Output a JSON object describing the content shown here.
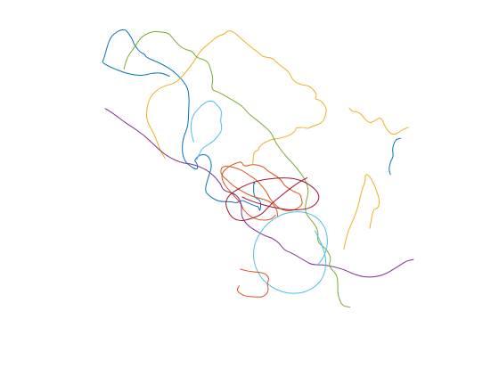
{
  "chart_data": {
    "type": "line",
    "title": "",
    "xlabel": "",
    "ylabel": "",
    "axes_visible": false,
    "grid": false,
    "legend": "none",
    "xlim": [
      0,
      100
    ],
    "ylim": [
      0,
      100
    ],
    "colors": [
      "#0072BD",
      "#D95319",
      "#EDB120",
      "#7E2F8E",
      "#77AC30",
      "#4DBEEE",
      "#A2142F"
    ],
    "series": [
      {
        "color": "#0072BD",
        "x": [
          49.1,
          48.9,
          48.7,
          48.9,
          51.2,
          50.8,
          50.3,
          49.5,
          45.5,
          45.1,
          43.1,
          41.8,
          37.3,
          33.9,
          33.1,
          34.2,
          35.5,
          34.2,
          31.5,
          29.6,
          30.6,
          30.9,
          27.5,
          26.3,
          25.8,
          26.1,
          27.7,
          27.9,
          28.1,
          27.5,
          23.4,
          18.6,
          14.3,
          13.8,
          12.3,
          10.3,
          10.1,
          8.7,
          7.2,
          4.0,
          2.3,
          0.7,
          0.0,
          10.9,
          18.2,
          21.8
        ],
        "y": [
          50.6,
          51.2,
          49.4,
          46.1,
          45.2,
          41.4,
          43.3,
          43.3,
          45.0,
          45.3,
          44.3,
          44.8,
          44.8,
          47.1,
          48.7,
          52.5,
          56.4,
          59.7,
          59.9,
          57.8,
          57.2,
          54.7,
          56.7,
          58.6,
          61.1,
          65.0,
          68.8,
          72.9,
          78.1,
          81.7,
          86.3,
          89.1,
          90.7,
          91.9,
          92.4,
          95.1,
          96.1,
          98.5,
          100.0,
          98.5,
          96.1,
          90.2,
          88.8,
          84.5,
          86.2,
          84.8
        ]
      },
      {
        "color": "#D95319",
        "x": [
          55.8,
          54.4,
          51.3,
          48.3,
          45.5,
          44.7,
          41.8,
          39.1,
          38.3,
          40.6,
          43.2,
          44.8,
          45.8,
          48.4,
          51.6,
          52.7,
          53.7,
          55.9,
          57.7,
          58.6,
          61.5,
          63.7,
          64.1,
          64.5,
          62.6,
          59.8,
          57.0,
          55.3,
          53.8,
          53.0,
          51.2,
          49.6,
          47.3,
          45.1,
          42.3,
          39.9,
          38.3,
          38.2,
          40.3,
          42.1,
          44.8,
          46.8,
          49.0,
          51.5,
          53.8,
          55.4,
          56.3,
          56.5
        ],
        "y": [
          40.5,
          39.1,
          38.8,
          39.7,
          42.0,
          44.3,
          47.4,
          50.5,
          53.6,
          56.0,
          57.1,
          57.6,
          55.9,
          56.8,
          56.1,
          55.2,
          54.3,
          53.1,
          51.6,
          49.9,
          48.0,
          47.3,
          45.7,
          44.0,
          42.4,
          41.7,
          42.6,
          44.2,
          46.0,
          47.8,
          50.0,
          51.8,
          53.2,
          54.8,
          55.8,
          56.2,
          55.7,
          53.4,
          51.7,
          49.9,
          48.3,
          47.1,
          46.3,
          45.7,
          44.9,
          43.6,
          41.9,
          39.9
        ]
      },
      {
        "color": "#EDB120",
        "x": [
          48.5,
          48.7,
          50.3,
          50.5,
          52.9,
          55.7,
          56.6,
          60.4,
          62.4,
          62.2,
          65.3,
          65.9,
          67.7,
          70.7,
          72.0,
          72.0,
          69.9,
          68.4,
          69.1,
          66.8,
          64.1,
          61.3,
          60.1,
          56.6,
          54.9,
          51.6,
          50.8,
          48.6,
          46.2,
          43.8,
          41.9,
          40.4,
          39.2,
          37.4,
          34.6,
          31.5,
          29.7,
          27.3,
          24.4,
          22.2,
          19.0,
          16.1,
          14.9,
          14.4,
          14.5,
          16.2,
          17.6,
          18.7,
          20.3
        ],
        "y": [
          56.9,
          60.7,
          61.1,
          62.4,
          64.1,
          64.9,
          64.9,
          65.9,
          67.6,
          68.4,
          68.5,
          68.0,
          68.9,
          69.8,
          72.5,
          75.2,
          77.3,
          77.5,
          79.0,
          81.8,
          82.0,
          83.4,
          86.3,
          88.7,
          90.6,
          91.0,
          92.0,
          93.5,
          95.5,
          97.7,
          99.2,
          99.3,
          98.1,
          97.7,
          95.4,
          92.7,
          89.6,
          86.4,
          83.2,
          82.2,
          81.3,
          78.9,
          76.4,
          73.6,
          70.5,
          67.6,
          64.5,
          61.4,
          58.6
        ]
      },
      {
        "color": "#7E2F8E",
        "x": [
          100.0,
          97.7,
          94.8,
          90.6,
          85.3,
          80.5,
          77.8,
          71.7,
          67.6,
          65.8,
          61.1,
          58.5,
          56.9,
          54.7,
          51.9,
          46.8,
          44.7,
          45.0,
          43.5,
          38.8,
          38.3,
          34.5,
          29.4,
          25.2,
          20.2,
          17.1,
          13.7,
          10.0,
          7.4,
          4.6,
          1.2
        ],
        "y": [
          26.4,
          25.9,
          24.0,
          21.4,
          20.5,
          21.8,
          23.2,
          24.7,
          24.7,
          25.6,
          28.4,
          29.4,
          31.7,
          33.2,
          34.1,
          37.1,
          40.3,
          43.7,
          47.1,
          48.4,
          50.5,
          54.6,
          56.8,
          57.2,
          59.8,
          62.7,
          65.9,
          68.5,
          70.1,
          72.3,
          74.5
        ]
      },
      {
        "color": "#77AC30",
        "x": [
          79.6,
          77.1,
          75.7,
          75.8,
          75.4,
          72.7,
          73.7,
          71.9,
          69.1,
          69.5,
          67.8,
          65.3,
          65.4,
          66.5,
          65.4,
          62.3,
          58.7,
          55.6,
          54.4,
          50.7,
          47.0,
          45.1,
          41.1,
          37.8,
          35.1,
          35.8,
          35.0,
          34.0,
          30.4,
          29.3,
          28.2,
          26.5,
          24.7,
          22.6,
          21.4,
          18.6,
          17.3,
          15.0,
          12.5,
          10.7,
          8.5,
          7.6,
          7.2
        ],
        "y": [
          11.2,
          11.6,
          15.1,
          18.9,
          21.6,
          24.3,
          26.8,
          29.9,
          31.9,
          35.6,
          38.3,
          41.1,
          44.3,
          48.1,
          51.8,
          55.9,
          59.7,
          63.9,
          67.0,
          70.1,
          72.9,
          75.3,
          77.7,
          79.6,
          80.5,
          84.0,
          86.9,
          89.8,
          90.7,
          92.5,
          93.0,
          93.4,
          94.7,
          97.2,
          98.6,
          98.9,
          99.1,
          98.6,
          97.1,
          94.2,
          91.3,
          88.9,
          87.1
        ]
      },
      {
        "color": "#4DBEEE",
        "x": [
          68.4,
          69.4,
          70.4,
          71.2,
          71.8,
          71.9,
          71.7,
          71.1,
          70.1,
          68.9,
          67.5,
          65.9,
          64.2,
          62.4,
          60.5,
          58.6,
          56.8,
          55.0,
          53.5,
          52.0,
          50.8,
          49.9,
          49.2,
          48.8,
          48.7,
          48.9,
          49.4,
          50.3,
          51.4,
          52.6,
          54.2,
          55.8,
          57.5,
          59.4,
          61.3,
          63.2,
          65.0,
          66.7,
          68.3,
          69.6,
          70.7,
          71.6,
          72.1,
          72.4,
          72.4,
          72.0,
          71.4,
          70.4,
          69.2
        ],
        "y": [
          35.5,
          33.7,
          31.6,
          29.4,
          27.2,
          25.1,
          23.0,
          21.0,
          19.4,
          18.2,
          17.1,
          16.3,
          15.8,
          15.6,
          15.6,
          15.9,
          16.5,
          17.3,
          18.4,
          19.6,
          21.2,
          22.8,
          24.6,
          26.4,
          28.3,
          30.2,
          32.1,
          33.9,
          35.6,
          37.2,
          38.5,
          39.7,
          40.6,
          41.2,
          41.5,
          41.6,
          41.4,
          40.9,
          40.2,
          39.2,
          37.9,
          36.4,
          34.8,
          33.0,
          31.2,
          29.4,
          27.6,
          26.0,
          24.5
        ]
      },
      {
        "color": "#A2142F",
        "x": [
          65.9,
          63.4,
          59.8,
          57.2,
          54.6,
          52.8,
          51.2,
          48.6,
          46.8,
          44.8,
          42.1,
          40.5,
          39.6,
          41.0,
          44.0,
          47.1,
          50.6,
          53.9,
          57.1,
          60.1,
          62.8,
          65.3,
          67.4,
          69.1,
          69.9,
          68.7,
          66.1,
          63.1,
          60.1,
          56.6,
          53.2,
          50.1,
          47.2,
          45.1
        ],
        "y": [
          52.4,
          51.1,
          48.5,
          46.4,
          44.3,
          42.3,
          40.7,
          39.6,
          39.1,
          38.6,
          39.4,
          41.6,
          44.6,
          47.1,
          49.0,
          50.5,
          51.6,
          52.1,
          52.4,
          52.4,
          51.9,
          51.0,
          49.7,
          48.1,
          46.1,
          43.9,
          42.5,
          42.2,
          42.2,
          42.7,
          43.4,
          44.3,
          45.3,
          46.3
        ]
      },
      {
        "color": "#EDB120",
        "x": [
          86.0,
          87.1,
          88.7,
          89.2,
          88.3,
          87.4,
          85.7,
          84.5,
          84.6,
          83.2,
          82.6,
          81.3,
          80.0,
          78.5,
          77.7
        ],
        "y": [
          36.3,
          42.6,
          42.6,
          45.2,
          47.8,
          50.4,
          53.3,
          53.6,
          51.4,
          47.7,
          44.6,
          40.3,
          37.7,
          33.8,
          29.6
        ]
      },
      {
        "color": "#0072BD",
        "x": [
          95.9,
          94.2,
          93.2,
          93.6,
          92.7,
          92.1,
          92.6
        ],
        "y": [
          65.0,
          64.6,
          61.8,
          59.2,
          57.7,
          55.2,
          53.5
        ]
      },
      {
        "color": "#EDB120",
        "x": [
          98.3,
          96.1,
          93.4,
          91.0,
          89.6,
          87.2,
          85.6,
          82.5,
          80.4,
          79.4
        ],
        "y": [
          68.5,
          67.5,
          65.8,
          68.3,
          72.0,
          70.3,
          69.8,
          73.5,
          73.5,
          74.6
        ]
      },
      {
        "color": "#D95319",
        "x": [
          44.1,
          43.3,
          44.5,
          46.4,
          50.5,
          51.4,
          52.8,
          53.6,
          53.0,
          53.8,
          52.5,
          49.4,
          47.0,
          44.5
        ],
        "y": [
          18.0,
          16.6,
          15.4,
          14.6,
          14.4,
          14.4,
          15.2,
          16.7,
          18.6,
          20.3,
          22.0,
          22.4,
          22.6,
          23.3
        ]
      },
      {
        "color": "#4DBEEE",
        "x": [
          30.5,
          31.5,
          32.4,
          33.9,
          35.5,
          36.6,
          37.5,
          38.4,
          38.5,
          38.1,
          38.4,
          38.4,
          37.3,
          35.8,
          34.2,
          32.5,
          31.1,
          29.7,
          28.8,
          28.6,
          28.9,
          29.5
        ],
        "y": [
          58.2,
          60.3,
          61.9,
          62.8,
          63.8,
          64.9,
          66.0,
          67.2,
          69.2,
          70.4,
          72.3,
          74.0,
          75.3,
          76.9,
          76.9,
          75.9,
          74.5,
          72.9,
          70.8,
          68.6,
          66.2,
          63.9
        ]
      }
    ]
  }
}
